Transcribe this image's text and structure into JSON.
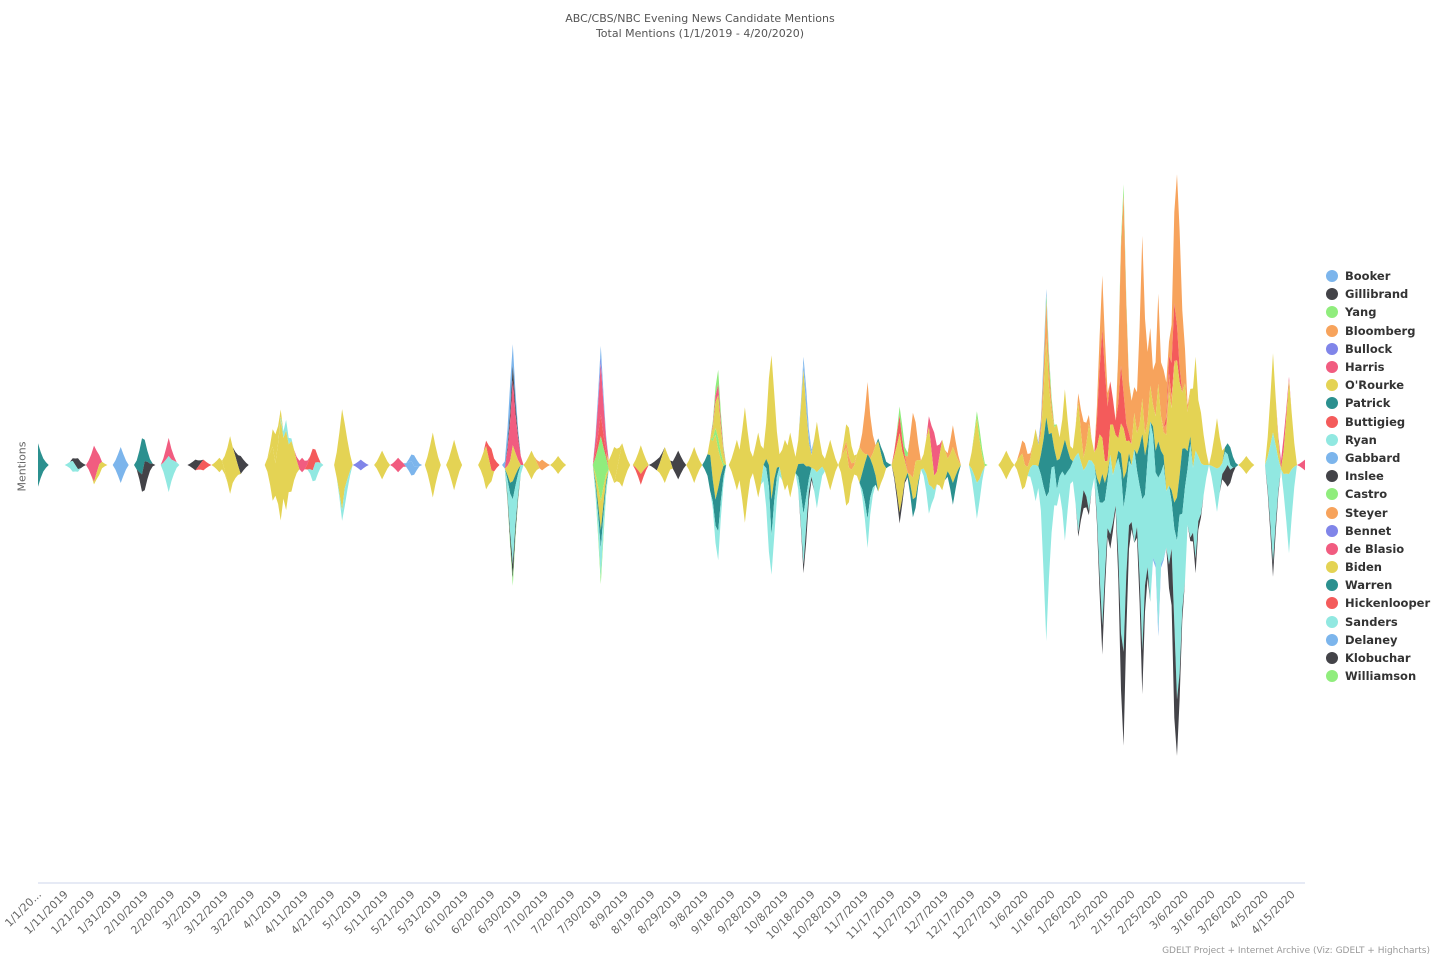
{
  "chart_data": {
    "type": "streamgraph",
    "title": "ABC/CBS/NBC Evening News Candidate Mentions",
    "subtitle": "Total Mentions (1/1/2019 - 4/20/2020)",
    "ylabel": "Mentions",
    "xlabel": "",
    "x_range": [
      "1/1/2019",
      "4/20/2020"
    ],
    "ylim": [
      -115,
      115
    ],
    "grid": false,
    "legend_position": "right",
    "x_tick_labels": [
      "1/1/20...",
      "1/11/2019",
      "1/21/2019",
      "1/31/2019",
      "2/10/2019",
      "2/20/2019",
      "3/2/2019",
      "3/12/2019",
      "3/22/2019",
      "4/1/2019",
      "4/11/2019",
      "4/21/2019",
      "5/1/2019",
      "5/11/2019",
      "5/21/2019",
      "5/31/2019",
      "6/10/2019",
      "6/20/2019",
      "6/30/2019",
      "7/10/2019",
      "7/20/2019",
      "7/30/2019",
      "8/9/2019",
      "8/19/2019",
      "8/29/2019",
      "9/8/2019",
      "9/18/2019",
      "9/28/2019",
      "10/8/2019",
      "10/18/2019",
      "10/28/2019",
      "11/7/2019",
      "11/17/2019",
      "11/27/2019",
      "12/7/2019",
      "12/17/2019",
      "12/27/2019",
      "1/6/2020",
      "1/16/2020",
      "1/26/2020",
      "2/5/2020",
      "2/15/2020",
      "2/25/2020",
      "3/6/2020",
      "3/16/2020",
      "3/26/2020",
      "4/5/2020",
      "4/15/2020"
    ],
    "series": [
      {
        "name": "Booker",
        "color": "#7cb5ec",
        "points": [
          [
            "2/1/2019",
            10
          ],
          [
            "5/22/2019",
            3
          ],
          [
            "6/27/2019",
            8
          ],
          [
            "6/28/2019",
            6
          ],
          [
            "7/31/2019",
            3
          ],
          [
            "10/16/2019",
            3
          ],
          [
            "1/13/2020",
            3
          ]
        ]
      },
      {
        "name": "Gillibrand",
        "color": "#434348",
        "points": [
          [
            "1/16/2019",
            3
          ],
          [
            "3/18/2019",
            5
          ],
          [
            "6/28/2019",
            4
          ],
          [
            "8/29/2019",
            8
          ]
        ]
      },
      {
        "name": "Yang",
        "color": "#90ed7d",
        "points": [
          [
            "9/13/2019",
            4
          ],
          [
            "11/21/2019",
            4
          ],
          [
            "12/20/2019",
            3
          ],
          [
            "1/15/2020",
            3
          ],
          [
            "2/12/2020",
            3
          ]
        ]
      },
      {
        "name": "Bloomberg",
        "color": "#f7a35c",
        "points": [
          [
            "11/8/2019",
            20
          ],
          [
            "11/25/2019",
            18
          ],
          [
            "12/10/2019",
            6
          ],
          [
            "1/6/2020",
            6
          ],
          [
            "1/14/2020",
            10
          ],
          [
            "1/28/2020",
            10
          ],
          [
            "2/4/2020",
            15
          ],
          [
            "2/12/2020",
            55
          ],
          [
            "2/15/2020",
            12
          ],
          [
            "2/19/2020",
            45
          ],
          [
            "2/20/2020",
            32
          ],
          [
            "2/22/2020",
            16
          ],
          [
            "2/25/2020",
            25
          ],
          [
            "2/27/2020",
            16
          ],
          [
            "3/3/2020",
            42
          ],
          [
            "3/4/2020",
            38
          ],
          [
            "3/5/2020",
            8
          ]
        ]
      },
      {
        "name": "Bullock",
        "color": "#8085e9",
        "points": [
          [
            "7/31/2019",
            2
          ]
        ]
      },
      {
        "name": "Harris",
        "color": "#f15c80",
        "points": [
          [
            "1/22/2019",
            10
          ],
          [
            "2/19/2019",
            5
          ],
          [
            "4/10/2019",
            4
          ],
          [
            "6/28/2019",
            18
          ],
          [
            "6/29/2019",
            10
          ],
          [
            "7/31/2019",
            14
          ],
          [
            "9/13/2019",
            3
          ],
          [
            "12/3/2019",
            12
          ],
          [
            "4/12/2020",
            4
          ]
        ]
      },
      {
        "name": "O'Rourke",
        "color": "#e4d354",
        "points": [
          [
            "3/14/2019",
            16
          ],
          [
            "3/15/2019",
            10
          ],
          [
            "3/31/2019",
            8
          ],
          [
            "8/5/2019",
            10
          ],
          [
            "9/13/2019",
            12
          ],
          [
            "11/1/2019",
            8
          ]
        ]
      },
      {
        "name": "Patrick",
        "color": "#2b908f",
        "points": [
          [
            "11/14/2019",
            3
          ]
        ]
      },
      {
        "name": "Buttigieg",
        "color": "#f45b5b",
        "points": [
          [
            "4/14/2019",
            6
          ],
          [
            "6/20/2019",
            6
          ],
          [
            "7/31/2019",
            6
          ],
          [
            "11/20/2019",
            5
          ],
          [
            "2/4/2020",
            30
          ],
          [
            "2/5/2020",
            25
          ],
          [
            "2/7/2020",
            12
          ],
          [
            "2/11/2020",
            16
          ],
          [
            "2/12/2020",
            8
          ],
          [
            "3/1/2020",
            8
          ],
          [
            "3/2/2020",
            16
          ]
        ]
      },
      {
        "name": "Ryan",
        "color": "#91e8e1",
        "points": [
          [
            "4/4/2019",
            3
          ]
        ]
      },
      {
        "name": "Gabbard",
        "color": "#7cb5ec",
        "points": [
          [
            "5/21/2019",
            4
          ],
          [
            "10/16/2019",
            3
          ]
        ]
      },
      {
        "name": "Inslee",
        "color": "#434348",
        "points": [
          [
            "3/1/2019",
            3
          ],
          [
            "8/21/2019",
            3
          ]
        ]
      },
      {
        "name": "Castro",
        "color": "#90ed7d",
        "points": [
          [
            "7/31/2019",
            18
          ],
          [
            "9/13/2019",
            3
          ]
        ]
      },
      {
        "name": "Steyer",
        "color": "#f7a35c",
        "points": [
          [
            "7/9/2019",
            3
          ],
          [
            "11/1/2019",
            3
          ],
          [
            "2/29/2020",
            5
          ]
        ]
      },
      {
        "name": "Bennet",
        "color": "#8085e9",
        "points": [
          [
            "5/2/2019",
            3
          ]
        ]
      },
      {
        "name": "de Blasio",
        "color": "#f15c80",
        "points": [
          [
            "5/16/2019",
            4
          ],
          [
            "4/20/2020",
            3
          ]
        ]
      },
      {
        "name": "Biden",
        "color": "#e4d354",
        "points": [
          [
            "1/24/2019",
            3
          ],
          [
            "3/10/2019",
            4
          ],
          [
            "3/30/2019",
            15
          ],
          [
            "4/2/2019",
            28
          ],
          [
            "4/4/2019",
            22
          ],
          [
            "4/6/2019",
            14
          ],
          [
            "4/25/2019",
            28
          ],
          [
            "4/26/2019",
            18
          ],
          [
            "5/10/2019",
            8
          ],
          [
            "5/29/2019",
            18
          ],
          [
            "6/6/2019",
            14
          ],
          [
            "6/18/2019",
            12
          ],
          [
            "6/28/2019",
            10
          ],
          [
            "7/5/2019",
            8
          ],
          [
            "7/15/2019",
            5
          ],
          [
            "7/31/2019",
            8
          ],
          [
            "8/8/2019",
            12
          ],
          [
            "8/15/2019",
            8
          ],
          [
            "8/24/2019",
            10
          ],
          [
            "9/4/2019",
            10
          ],
          [
            "9/12/2019",
            18
          ],
          [
            "9/20/2019",
            14
          ],
          [
            "9/23/2019",
            32
          ],
          [
            "9/28/2019",
            18
          ],
          [
            "10/3/2019",
            40
          ],
          [
            "10/8/2019",
            14
          ],
          [
            "10/10/2019",
            18
          ],
          [
            "10/15/2019",
            26
          ],
          [
            "10/20/2019",
            14
          ],
          [
            "10/25/2019",
            14
          ],
          [
            "10/31/2019",
            16
          ],
          [
            "11/5/2019",
            10
          ],
          [
            "11/12/2019",
            14
          ],
          [
            "11/20/2019",
            22
          ],
          [
            "11/26/2019",
            10
          ],
          [
            "12/1/2019",
            16
          ],
          [
            "12/6/2019",
            14
          ],
          [
            "12/10/2019",
            10
          ],
          [
            "12/19/2019",
            18
          ],
          [
            "12/30/2019",
            8
          ],
          [
            "1/5/2020",
            10
          ],
          [
            "1/10/2020",
            10
          ],
          [
            "1/14/2020",
            22
          ],
          [
            "1/18/2020",
            10
          ],
          [
            "1/21/2020",
            14
          ],
          [
            "1/26/2020",
            14
          ],
          [
            "1/30/2020",
            10
          ],
          [
            "2/3/2020",
            14
          ],
          [
            "2/4/2020",
            10
          ],
          [
            "2/8/2020",
            14
          ],
          [
            "2/12/2020",
            14
          ],
          [
            "2/16/2020",
            10
          ],
          [
            "2/19/2020",
            10
          ],
          [
            "2/22/2020",
            10
          ],
          [
            "2/25/2020",
            16
          ],
          [
            "2/29/2020",
            26
          ],
          [
            "3/2/2020",
            38
          ],
          [
            "3/3/2020",
            38
          ],
          [
            "3/4/2020",
            26
          ],
          [
            "3/6/2020",
            18
          ],
          [
            "3/9/2020",
            22
          ],
          [
            "3/10/2020",
            26
          ],
          [
            "3/12/2020",
            14
          ],
          [
            "3/18/2020",
            14
          ],
          [
            "3/29/2020",
            5
          ],
          [
            "4/8/2020",
            22
          ],
          [
            "4/14/2020",
            26
          ]
        ]
      },
      {
        "name": "Warren",
        "color": "#2b908f",
        "points": [
          [
            "1/1/2019",
            12
          ],
          [
            "1/2/2019",
            6
          ],
          [
            "2/9/2019",
            10
          ],
          [
            "2/10/2019",
            5
          ],
          [
            "6/28/2019",
            5
          ],
          [
            "7/31/2019",
            5
          ],
          [
            "9/10/2019",
            10
          ],
          [
            "9/13/2019",
            12
          ],
          [
            "10/3/2019",
            10
          ],
          [
            "10/15/2019",
            14
          ],
          [
            "11/8/2019",
            18
          ],
          [
            "11/9/2019",
            10
          ],
          [
            "11/25/2019",
            5
          ],
          [
            "12/10/2019",
            6
          ],
          [
            "1/14/2020",
            22
          ],
          [
            "1/15/2020",
            16
          ],
          [
            "1/18/2020",
            8
          ],
          [
            "1/21/2020",
            10
          ],
          [
            "2/4/2020",
            8
          ],
          [
            "2/12/2020",
            8
          ],
          [
            "2/19/2020",
            18
          ],
          [
            "2/25/2020",
            10
          ],
          [
            "3/3/2020",
            12
          ],
          [
            "3/5/2020",
            18
          ],
          [
            "3/6/2020",
            8
          ],
          [
            "3/23/2020",
            5
          ]
        ]
      },
      {
        "name": "Hickenlooper",
        "color": "#f45b5b",
        "points": [
          [
            "3/4/2019",
            3
          ],
          [
            "8/15/2019",
            3
          ]
        ]
      },
      {
        "name": "Sanders",
        "color": "#91e8e1",
        "points": [
          [
            "1/14/2019",
            3
          ],
          [
            "2/19/2019",
            10
          ],
          [
            "2/20/2019",
            6
          ],
          [
            "4/15/2019",
            5
          ],
          [
            "4/26/2019",
            5
          ],
          [
            "6/28/2019",
            18
          ],
          [
            "6/29/2019",
            10
          ],
          [
            "7/31/2019",
            8
          ],
          [
            "9/13/2019",
            8
          ],
          [
            "10/2/2019",
            18
          ],
          [
            "10/4/2019",
            10
          ],
          [
            "10/15/2019",
            14
          ],
          [
            "10/20/2019",
            10
          ],
          [
            "11/8/2019",
            8
          ],
          [
            "12/1/2019",
            8
          ],
          [
            "12/19/2019",
            10
          ],
          [
            "1/10/2020",
            10
          ],
          [
            "1/14/2020",
            40
          ],
          [
            "1/16/2020",
            18
          ],
          [
            "1/21/2020",
            18
          ],
          [
            "1/26/2020",
            22
          ],
          [
            "1/30/2020",
            14
          ],
          [
            "2/4/2020",
            34
          ],
          [
            "2/7/2020",
            22
          ],
          [
            "2/11/2020",
            45
          ],
          [
            "2/12/2020",
            40
          ],
          [
            "2/14/2020",
            18
          ],
          [
            "2/16/2020",
            26
          ],
          [
            "2/19/2020",
            42
          ],
          [
            "2/22/2020",
            50
          ],
          [
            "2/23/2020",
            34
          ],
          [
            "2/25/2020",
            42
          ],
          [
            "2/27/2020",
            26
          ],
          [
            "2/29/2020",
            22
          ],
          [
            "3/3/2020",
            44
          ],
          [
            "3/4/2020",
            44
          ],
          [
            "3/6/2020",
            26
          ],
          [
            "3/8/2020",
            26
          ],
          [
            "3/10/2020",
            30
          ],
          [
            "3/12/2020",
            14
          ],
          [
            "3/18/2020",
            12
          ],
          [
            "3/21/2020",
            5
          ],
          [
            "4/8/2020",
            36
          ],
          [
            "4/14/2020",
            22
          ]
        ]
      },
      {
        "name": "Delaney",
        "color": "#7cb5ec",
        "points": [
          [
            "2/25/2020",
            2
          ]
        ]
      },
      {
        "name": "Klobuchar",
        "color": "#434348",
        "points": [
          [
            "2/10/2019",
            8
          ],
          [
            "2/11/2019",
            3
          ],
          [
            "6/28/2019",
            4
          ],
          [
            "10/16/2019",
            4
          ],
          [
            "11/20/2019",
            3
          ],
          [
            "1/28/2020",
            5
          ],
          [
            "2/4/2020",
            8
          ],
          [
            "2/7/2020",
            4
          ],
          [
            "2/12/2020",
            26
          ],
          [
            "2/13/2020",
            8
          ],
          [
            "2/19/2020",
            12
          ],
          [
            "3/2/2020",
            26
          ],
          [
            "3/3/2020",
            12
          ],
          [
            "3/10/2020",
            4
          ],
          [
            "3/22/2020",
            6
          ],
          [
            "4/8/2020",
            4
          ]
        ]
      },
      {
        "name": "Williamson",
        "color": "#90ed7d",
        "points": [
          [
            "6/28/2019",
            2
          ],
          [
            "7/31/2019",
            2
          ]
        ]
      }
    ]
  },
  "credits": "GDELT Project + Internet Archive (Viz: GDELT + Highcharts)"
}
